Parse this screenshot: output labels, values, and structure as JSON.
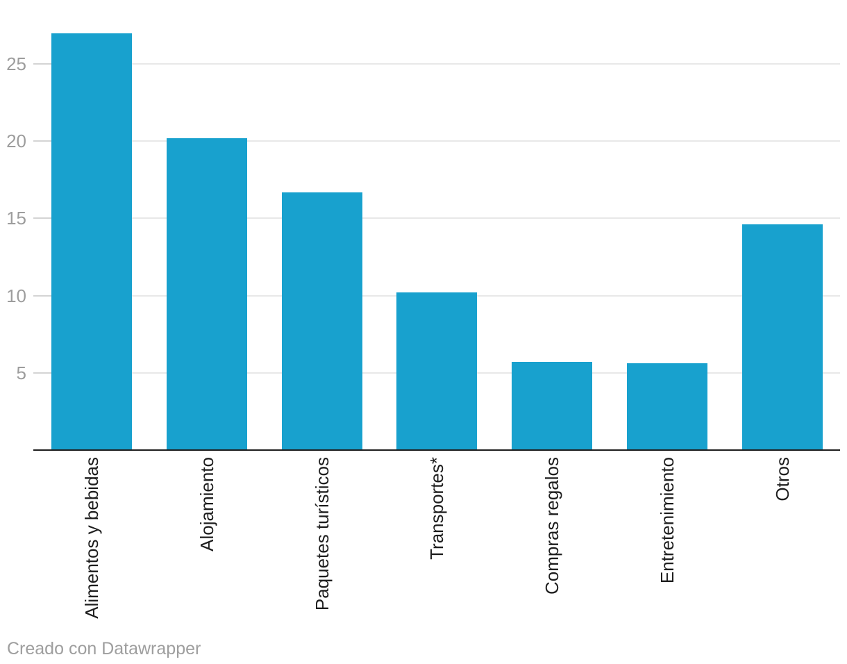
{
  "chart_data": {
    "type": "bar",
    "categories": [
      "Alimentos y bebidas",
      "Alojamiento",
      "Paquetes turísticos",
      "Transportes*",
      "Compras regalos",
      "Entretenimiento",
      "Otros"
    ],
    "values": [
      27,
      20.2,
      16.7,
      10.2,
      5.7,
      5.6,
      14.6
    ],
    "title": "",
    "xlabel": "",
    "ylabel": "",
    "ylim": [
      0,
      27
    ],
    "y_ticks": [
      "5",
      "10",
      "15",
      "20",
      "25"
    ],
    "grid": true,
    "legend": "none",
    "bar_color": "#18a1ce"
  },
  "colors": {
    "bar": "#18a1ce",
    "gridline": "#e8e8e8",
    "tick_segment": "#d4d4d4",
    "axis_line": "#1d1d1d",
    "tick_label": "#9d9d9d",
    "x_label": "#1d1d1d",
    "footer": "#9e9e9e"
  },
  "footer": {
    "text": "Creado con Datawrapper"
  }
}
